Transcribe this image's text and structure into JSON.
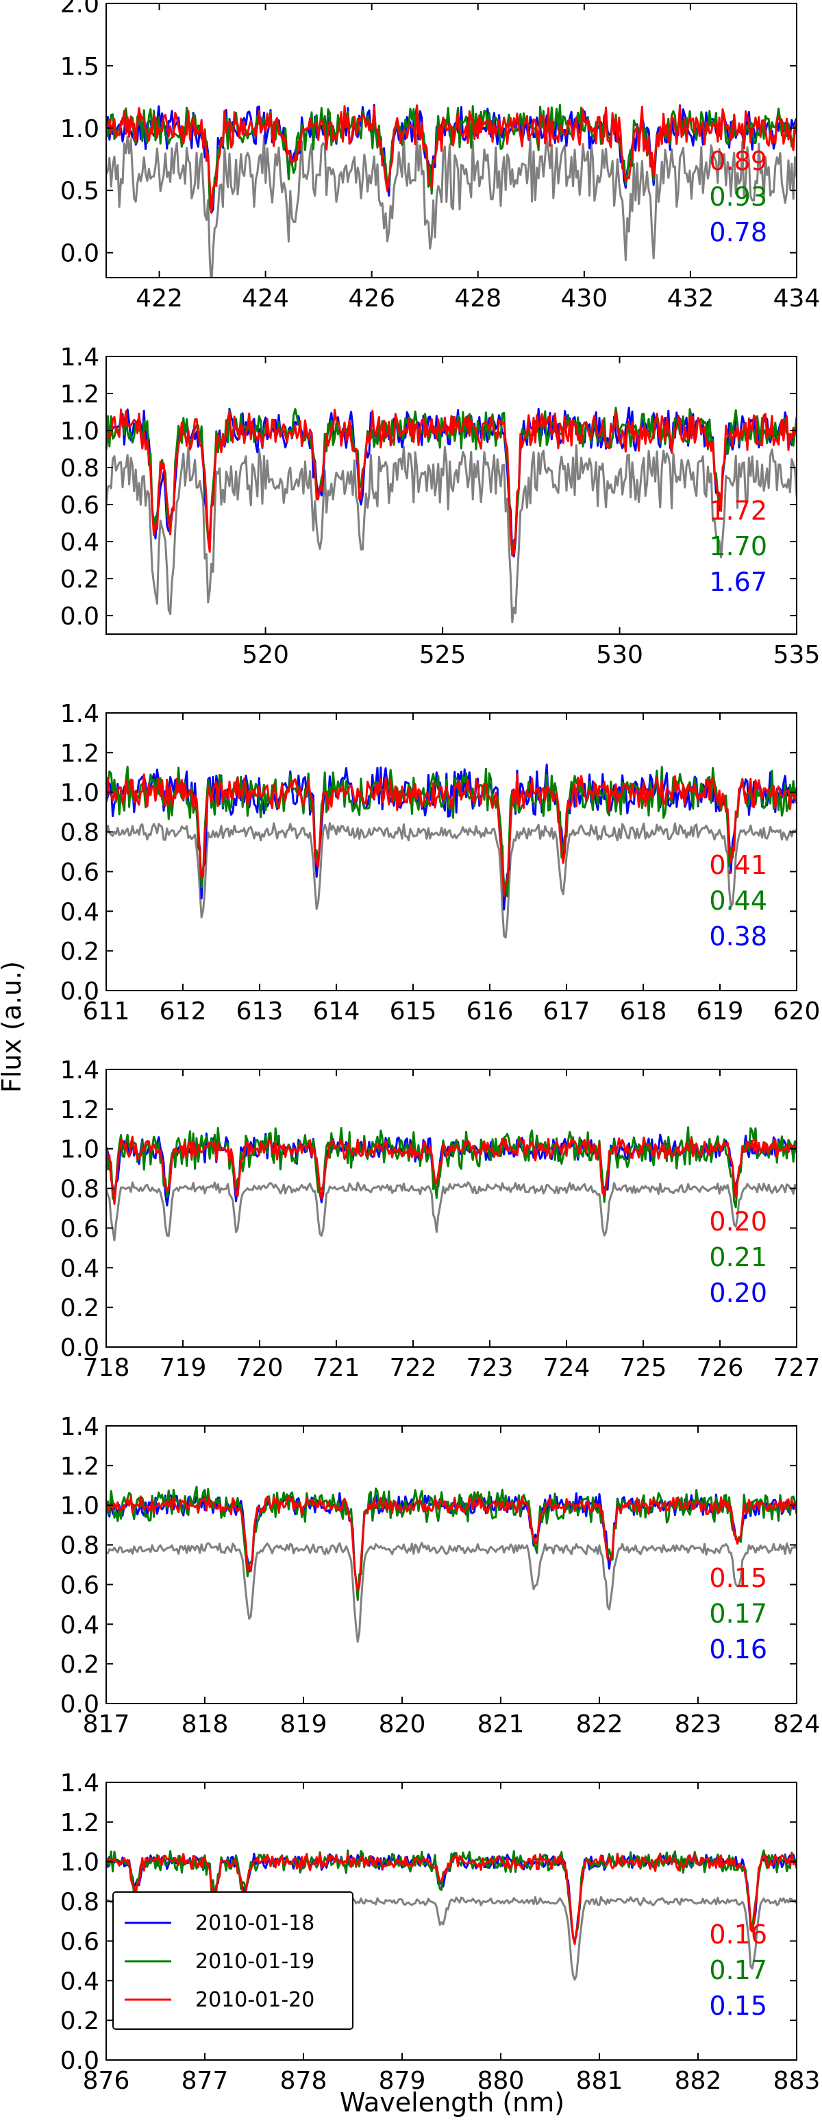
{
  "figure": {
    "ylabel": "Flux (a.u.)",
    "xlabel": "Wavelength (nm)"
  },
  "colors": {
    "2010-01-18": "#0000ff",
    "2010-01-19": "#008000",
    "2010-01-20": "#ff0000",
    "reference": "#808080"
  },
  "legend": {
    "entries": [
      {
        "name": "2010-01-18",
        "color": "#0000ff"
      },
      {
        "name": "2010-01-19",
        "color": "#008000"
      },
      {
        "name": "2010-01-20",
        "color": "#ff0000"
      }
    ]
  },
  "chart_data": [
    {
      "type": "line",
      "xlim": [
        421,
        434
      ],
      "ylim": [
        -0.2,
        2.0
      ],
      "xticks": [
        "422",
        "424",
        "426",
        "428",
        "430",
        "432",
        "434"
      ],
      "yticks": [
        "0.0",
        "0.5",
        "1.0",
        "1.5",
        "2.0"
      ],
      "annotations": [
        "0.89",
        "0.93",
        "0.78"
      ],
      "lines": [
        {
          "x": 423.0,
          "depth": 0.8,
          "w": 0.1
        },
        {
          "x": 424.5,
          "depth": 0.5,
          "w": 0.1
        },
        {
          "x": 426.3,
          "depth": 0.6,
          "w": 0.1
        },
        {
          "x": 427.1,
          "depth": 0.55,
          "w": 0.1
        },
        {
          "x": 430.8,
          "depth": 0.55,
          "w": 0.1
        },
        {
          "x": 431.3,
          "depth": 0.5,
          "w": 0.08
        }
      ],
      "series": [
        {
          "name": "2010-01-18",
          "base": 1.0,
          "noise": 0.12,
          "line_scale": 0.75
        },
        {
          "name": "2010-01-19",
          "base": 1.0,
          "noise": 0.12,
          "line_scale": 0.75
        },
        {
          "name": "2010-01-20",
          "base": 1.0,
          "noise": 0.12,
          "line_scale": 0.75
        },
        {
          "name": "reference",
          "base": 0.65,
          "noise": 0.2,
          "line_scale": 1.0
        }
      ]
    },
    {
      "type": "line",
      "xlim": [
        515.5,
        535
      ],
      "ylim": [
        -0.1,
        1.4
      ],
      "xticks": [
        "520",
        "525",
        "530",
        "535"
      ],
      "yticks": [
        "0.0",
        "0.2",
        "0.4",
        "0.6",
        "0.8",
        "1.0",
        "1.2",
        "1.4"
      ],
      "annotations": [
        "1.72",
        "1.70",
        "1.67"
      ],
      "lines": [
        {
          "x": 516.9,
          "depth": 0.65,
          "w": 0.15
        },
        {
          "x": 517.3,
          "depth": 0.6,
          "w": 0.15
        },
        {
          "x": 518.4,
          "depth": 0.7,
          "w": 0.15
        },
        {
          "x": 521.5,
          "depth": 0.45,
          "w": 0.15
        },
        {
          "x": 522.7,
          "depth": 0.4,
          "w": 0.15
        },
        {
          "x": 527.0,
          "depth": 0.75,
          "w": 0.15
        },
        {
          "x": 532.8,
          "depth": 0.5,
          "w": 0.15
        }
      ],
      "series": [
        {
          "name": "2010-01-18",
          "base": 1.0,
          "noise": 0.08,
          "line_scale": 0.85
        },
        {
          "name": "2010-01-19",
          "base": 1.0,
          "noise": 0.08,
          "line_scale": 0.85
        },
        {
          "name": "2010-01-20",
          "base": 1.0,
          "noise": 0.08,
          "line_scale": 0.85
        },
        {
          "name": "reference",
          "base": 0.75,
          "noise": 0.12,
          "line_scale": 1.0
        }
      ]
    },
    {
      "type": "line",
      "xlim": [
        611,
        620
      ],
      "ylim": [
        0.0,
        1.4
      ],
      "xticks": [
        "611",
        "612",
        "613",
        "614",
        "615",
        "616",
        "617",
        "618",
        "619",
        "620"
      ],
      "yticks": [
        "0.0",
        "0.2",
        "0.4",
        "0.6",
        "0.8",
        "1.0",
        "1.2",
        "1.4"
      ],
      "annotations": [
        "0.41",
        "0.44",
        "0.38"
      ],
      "lines": [
        {
          "x": 612.25,
          "depth": 0.45,
          "w": 0.05
        },
        {
          "x": 613.75,
          "depth": 0.4,
          "w": 0.05
        },
        {
          "x": 616.2,
          "depth": 0.55,
          "w": 0.06
        },
        {
          "x": 616.95,
          "depth": 0.35,
          "w": 0.05
        },
        {
          "x": 619.15,
          "depth": 0.4,
          "w": 0.05
        }
      ],
      "series": [
        {
          "name": "2010-01-18",
          "base": 1.0,
          "noise": 0.09,
          "line_scale": 1.0
        },
        {
          "name": "2010-01-19",
          "base": 1.0,
          "noise": 0.09,
          "line_scale": 1.0
        },
        {
          "name": "2010-01-20",
          "base": 1.0,
          "noise": 0.06,
          "line_scale": 1.0
        },
        {
          "name": "reference",
          "base": 0.8,
          "noise": 0.03,
          "line_scale": 1.0
        }
      ]
    },
    {
      "type": "line",
      "xlim": [
        718,
        727
      ],
      "ylim": [
        0.0,
        1.4
      ],
      "xticks": [
        "718",
        "719",
        "720",
        "721",
        "722",
        "723",
        "724",
        "725",
        "726",
        "727"
      ],
      "yticks": [
        "0.0",
        "0.2",
        "0.4",
        "0.6",
        "0.8",
        "1.0",
        "1.2",
        "1.4"
      ],
      "annotations": [
        "0.20",
        "0.21",
        "0.20"
      ],
      "lines": [
        {
          "x": 718.1,
          "depth": 0.25,
          "w": 0.05
        },
        {
          "x": 718.8,
          "depth": 0.25,
          "w": 0.05
        },
        {
          "x": 719.7,
          "depth": 0.22,
          "w": 0.05
        },
        {
          "x": 720.8,
          "depth": 0.25,
          "w": 0.05
        },
        {
          "x": 722.3,
          "depth": 0.2,
          "w": 0.05
        },
        {
          "x": 724.5,
          "depth": 0.25,
          "w": 0.05
        },
        {
          "x": 726.2,
          "depth": 0.2,
          "w": 0.05
        }
      ],
      "series": [
        {
          "name": "2010-01-18",
          "base": 1.0,
          "noise": 0.05,
          "line_scale": 1.0
        },
        {
          "name": "2010-01-19",
          "base": 1.0,
          "noise": 0.07,
          "line_scale": 1.0
        },
        {
          "name": "2010-01-20",
          "base": 1.0,
          "noise": 0.04,
          "line_scale": 1.0
        },
        {
          "name": "reference",
          "base": 0.8,
          "noise": 0.02,
          "line_scale": 1.0
        }
      ]
    },
    {
      "type": "line",
      "xlim": [
        817,
        824
      ],
      "ylim": [
        0.0,
        1.4
      ],
      "xticks": [
        "817",
        "818",
        "819",
        "820",
        "821",
        "822",
        "823",
        "824"
      ],
      "yticks": [
        "0.0",
        "0.2",
        "0.4",
        "0.6",
        "0.8",
        "1.0",
        "1.2",
        "1.4"
      ],
      "annotations": [
        "0.15",
        "0.17",
        "0.16"
      ],
      "lines": [
        {
          "x": 818.45,
          "depth": 0.35,
          "w": 0.05
        },
        {
          "x": 819.55,
          "depth": 0.45,
          "w": 0.05
        },
        {
          "x": 821.35,
          "depth": 0.2,
          "w": 0.05
        },
        {
          "x": 822.1,
          "depth": 0.3,
          "w": 0.05
        },
        {
          "x": 823.4,
          "depth": 0.2,
          "w": 0.05
        }
      ],
      "series": [
        {
          "name": "2010-01-18",
          "base": 1.0,
          "noise": 0.04,
          "line_scale": 1.0
        },
        {
          "name": "2010-01-19",
          "base": 1.0,
          "noise": 0.06,
          "line_scale": 1.0
        },
        {
          "name": "2010-01-20",
          "base": 1.0,
          "noise": 0.03,
          "line_scale": 1.0
        },
        {
          "name": "reference",
          "base": 0.78,
          "noise": 0.02,
          "line_scale": 1.0
        }
      ]
    },
    {
      "type": "line",
      "xlim": [
        876,
        883
      ],
      "ylim": [
        0.0,
        1.4
      ],
      "xticks": [
        "876",
        "877",
        "878",
        "879",
        "880",
        "881",
        "882",
        "883"
      ],
      "yticks": [
        "0.0",
        "0.2",
        "0.4",
        "0.6",
        "0.8",
        "1.0",
        "1.2",
        "1.4"
      ],
      "annotations": [
        "0.16",
        "0.17",
        "0.15"
      ],
      "lines": [
        {
          "x": 876.3,
          "depth": 0.15,
          "w": 0.05
        },
        {
          "x": 877.1,
          "depth": 0.15,
          "w": 0.05
        },
        {
          "x": 877.4,
          "depth": 0.15,
          "w": 0.05
        },
        {
          "x": 879.4,
          "depth": 0.12,
          "w": 0.05
        },
        {
          "x": 880.75,
          "depth": 0.4,
          "w": 0.06
        },
        {
          "x": 882.55,
          "depth": 0.35,
          "w": 0.05
        }
      ],
      "series": [
        {
          "name": "2010-01-18",
          "base": 1.0,
          "noise": 0.03,
          "line_scale": 1.0
        },
        {
          "name": "2010-01-19",
          "base": 1.0,
          "noise": 0.04,
          "line_scale": 1.0
        },
        {
          "name": "2010-01-20",
          "base": 1.0,
          "noise": 0.03,
          "line_scale": 1.0
        },
        {
          "name": "reference",
          "base": 0.8,
          "noise": 0.015,
          "line_scale": 1.0
        }
      ]
    }
  ]
}
